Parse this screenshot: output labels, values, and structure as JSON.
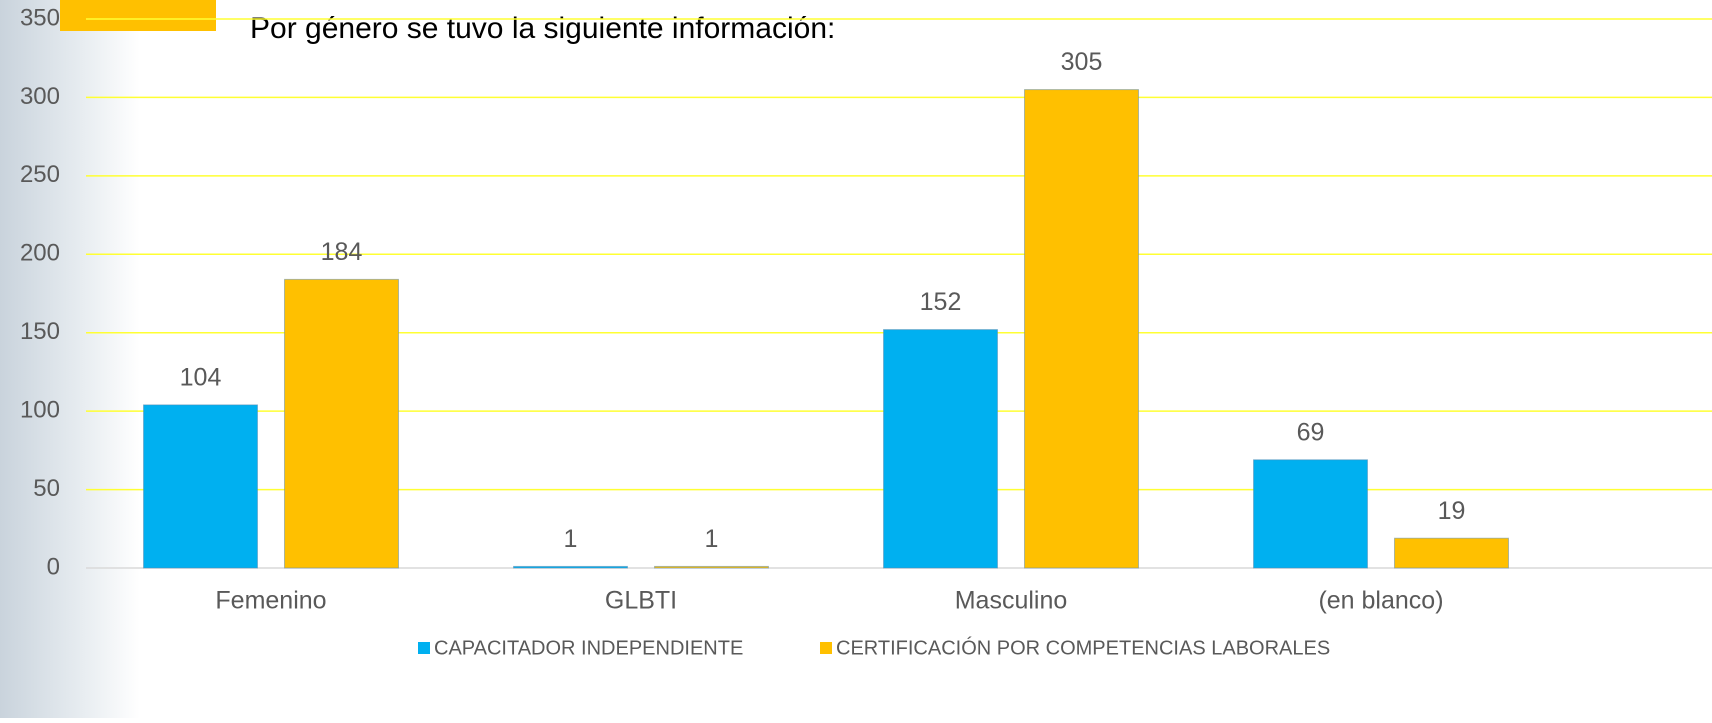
{
  "chart_data": {
    "type": "bar",
    "subtitle": "Por género se tuvo la siguiente información:",
    "categories": [
      "Femenino",
      "GLBTI",
      "Masculino",
      "(en blanco)"
    ],
    "series": [
      {
        "name": "CAPACITADOR INDEPENDIENTE",
        "color": "#00b0f0",
        "values": [
          104,
          1,
          152,
          69
        ]
      },
      {
        "name": "CERTIFICACIÓN POR COMPETENCIAS LABORALES",
        "color": "#ffc000",
        "values": [
          184,
          1,
          305,
          19
        ]
      }
    ],
    "ylim": [
      0,
      350
    ],
    "yticks": [
      0,
      50,
      100,
      150,
      200,
      250,
      300,
      350
    ],
    "grid": true,
    "legend": "bottom"
  }
}
